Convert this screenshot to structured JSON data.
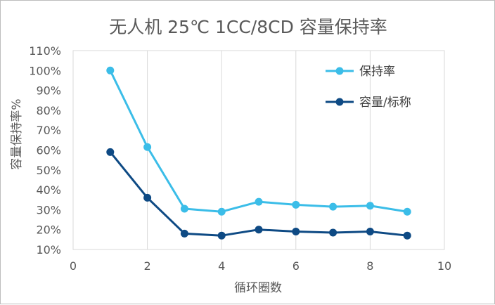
{
  "chart_data": {
    "type": "line",
    "title": "无人机  25℃ 1CC/8CD 容量保持率",
    "xlabel": "循环圈数",
    "ylabel": "容量保持率%",
    "xlim": [
      0,
      10
    ],
    "ylim": [
      10,
      110
    ],
    "x_ticks": [
      0,
      2,
      4,
      6,
      8,
      10
    ],
    "y_ticks": [
      10,
      20,
      30,
      40,
      50,
      60,
      70,
      80,
      90,
      100,
      110
    ],
    "y_tick_labels": [
      "10%",
      "20%",
      "30%",
      "40%",
      "50%",
      "60%",
      "70%",
      "80%",
      "90%",
      "100%",
      "110%"
    ],
    "grid": "vertical",
    "legend_position": "top-right",
    "series": [
      {
        "name": "保持率",
        "color": "#3bbde8",
        "marker": "circle",
        "x": [
          1,
          2,
          3,
          4,
          5,
          6,
          7,
          8,
          9
        ],
        "y": [
          100,
          61.5,
          30.5,
          29,
          34,
          32.5,
          31.5,
          32,
          29
        ]
      },
      {
        "name": "容量/标称",
        "color": "#0e4a84",
        "marker": "circle",
        "x": [
          1,
          2,
          3,
          4,
          5,
          6,
          7,
          8,
          9
        ],
        "y": [
          59,
          36,
          18,
          17,
          20,
          19,
          18.5,
          19,
          17
        ]
      }
    ]
  }
}
